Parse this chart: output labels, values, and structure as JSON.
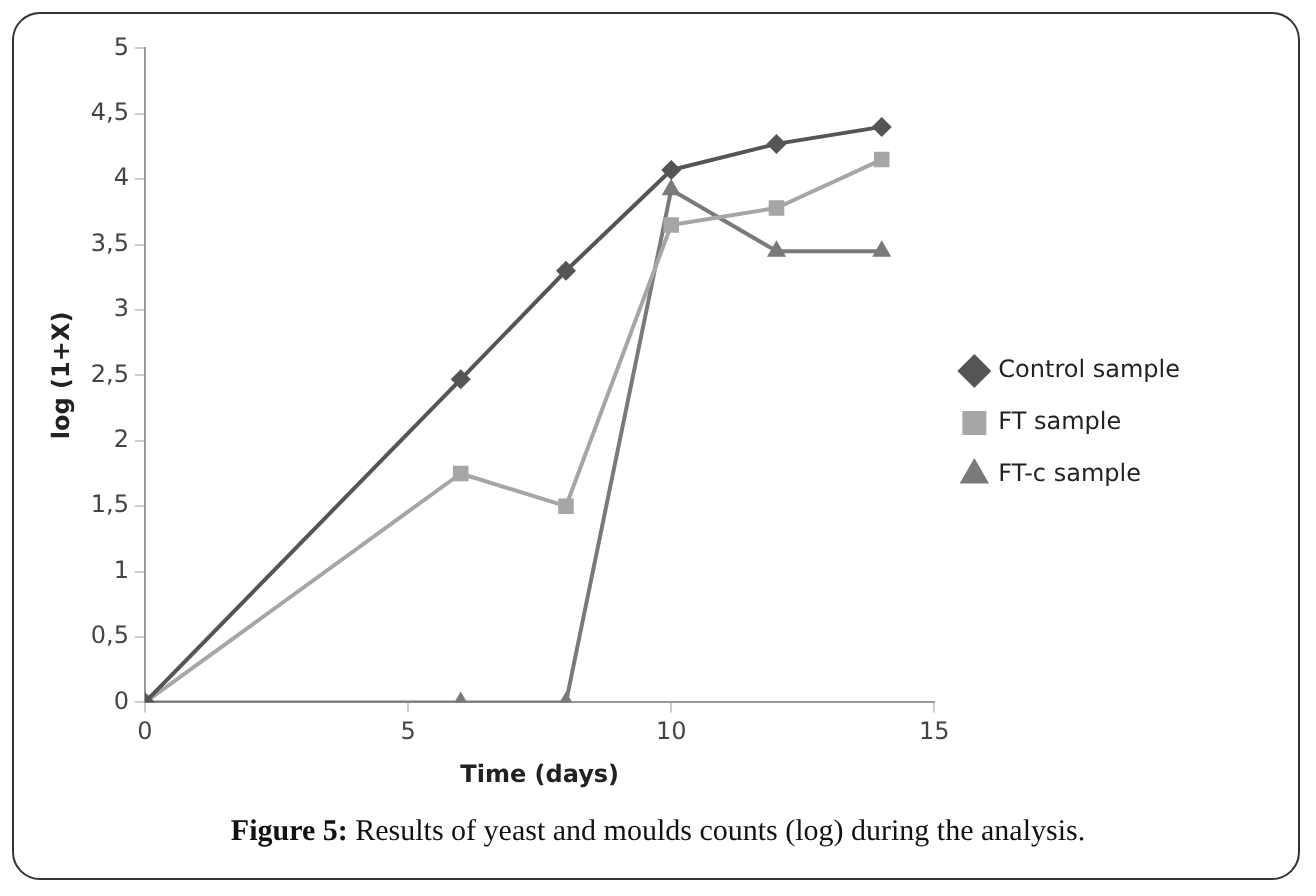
{
  "chart_data": {
    "type": "line",
    "xlabel": "Time (days)",
    "ylabel": "log (1+X)",
    "x": [
      0,
      6,
      8,
      10,
      12,
      14
    ],
    "series": [
      {
        "name": "Control sample",
        "color": "#555555",
        "marker": "diamond",
        "values": [
          0,
          2.47,
          3.3,
          4.07,
          4.27,
          4.4
        ]
      },
      {
        "name": "FT sample",
        "color": "#a6a6a6",
        "marker": "square",
        "values": [
          0,
          1.75,
          1.5,
          3.65,
          3.78,
          4.15
        ]
      },
      {
        "name": "FT-c sample",
        "color": "#7a7a7a",
        "marker": "triangle",
        "values": [
          0,
          0,
          0,
          3.92,
          3.45,
          3.45
        ]
      }
    ],
    "xlim": [
      0,
      15
    ],
    "xticks": [
      0,
      5,
      10,
      15
    ],
    "ylim": [
      0,
      5
    ],
    "yticks": [
      0,
      {
        "value": 0.5,
        "label": "0,5"
      },
      1,
      {
        "value": 1.5,
        "label": "1,5"
      },
      2,
      {
        "value": 2.5,
        "label": "2,5"
      },
      3,
      {
        "value": 3.5,
        "label": "3,5"
      },
      4,
      {
        "value": 4.5,
        "label": "4,5"
      },
      5
    ],
    "grid": false,
    "legend": "right",
    "line_style": "solid",
    "annotations": [
      "Figure 5: Results of yeast and moulds counts (log) during the analysis."
    ]
  }
}
